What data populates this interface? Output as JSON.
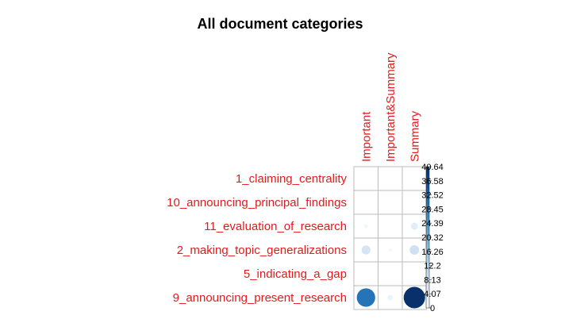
{
  "chart_data": {
    "type": "corrplot",
    "title": "All document categories",
    "columns": [
      "Important",
      "Important&Summary",
      "Summary"
    ],
    "rows": [
      "1_claiming_centrality",
      "10_announcing_principal_findings",
      "11_evaluation_of_research",
      "2_making_topic_generalizations",
      "5_indicating_a_gap",
      "9_announcing_present_research"
    ],
    "values": [
      [
        0,
        0,
        0
      ],
      [
        0,
        0,
        0
      ],
      [
        1.5,
        0,
        4.5
      ],
      [
        7,
        1,
        8
      ],
      [
        0,
        0,
        0
      ],
      [
        30,
        2.5,
        40.6
      ]
    ],
    "colorbar": {
      "ticks": [
        "40.64",
        "36.58",
        "32.52",
        "28.45",
        "24.39",
        "20.32",
        "16.26",
        "12.2",
        "8.13",
        "4.07",
        "0"
      ],
      "min": 0,
      "max": 40.64,
      "low_color": "#f7fbff",
      "high_color": "#08306b"
    },
    "label_color": "#e41a1c",
    "grid_color": "#bbbbbb"
  }
}
